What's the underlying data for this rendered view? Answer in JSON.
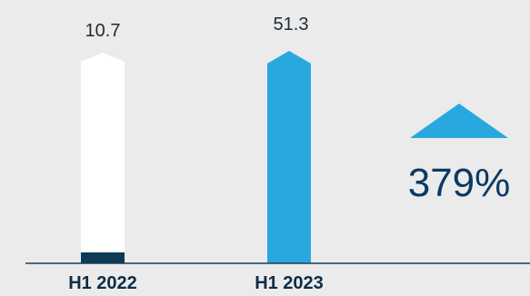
{
  "chart_data": {
    "type": "bar",
    "categories": [
      "H1 2022",
      "H1 2023"
    ],
    "values": [
      10.7,
      51.3
    ],
    "value_labels": [
      "10.7",
      "51.3"
    ],
    "change_label": "379%",
    "change_direction": "up",
    "ylim": [
      0,
      51.3
    ],
    "grid": false,
    "legend": "none",
    "colors": {
      "background": "#ebebeb",
      "bar_2022": "#ffffff",
      "bar_2022_base": "#0d3a57",
      "bar_2023": "#29a8e0",
      "arrow": "#29a8e0",
      "change_text": "#0a3a66",
      "axis": "#1f3b57"
    }
  }
}
